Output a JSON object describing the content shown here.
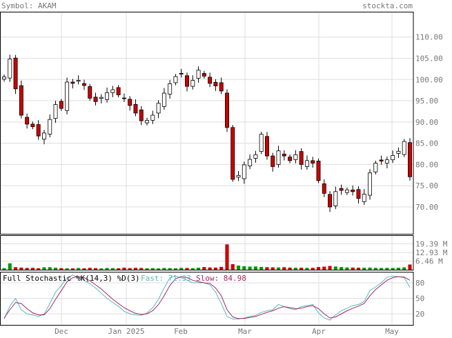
{
  "header": {
    "symbol_label": "Symbol: AKAM",
    "site": "stockta.com"
  },
  "colors": {
    "text": "#777777",
    "grid": "#dddddd",
    "frame": "#000000",
    "up_candle": "#ffffff",
    "down_candle": "#cc0000",
    "volume_up": "#009900",
    "volume_down": "#cc0000",
    "fast_line": "#55bbbb",
    "slow_line": "#aa2266"
  },
  "chart_data": [
    {
      "type": "candlestick",
      "title": "Symbol: AKAM",
      "x_ticks": [
        "Dec",
        "Jan 2025",
        "Feb",
        "Mar",
        "Apr",
        "May"
      ],
      "y_ticks": [
        "110.00",
        "105.00",
        "100.00",
        "95.00",
        "90.00",
        "85.00",
        "80.00",
        "75.00",
        "70.00"
      ],
      "ylim": [
        63.5,
        115.8
      ],
      "grid": true,
      "close_series": [
        100.6,
        104.8,
        97.8,
        91.6,
        89.5,
        88.9,
        86.7,
        87.4,
        90.6,
        94.1,
        93.2,
        99.4,
        99.1,
        99.8,
        98.6,
        95.6,
        94.8,
        95.8,
        96.9,
        97.6,
        96.4,
        95.6,
        93.9,
        92.1,
        90.3,
        90.4,
        91.6,
        94.4,
        96.8,
        99.0,
        100.7,
        101.4,
        98.4,
        99.8,
        102.2,
        100.8,
        99.1,
        98.5,
        97.3,
        88.7,
        76.5,
        77.4,
        79.9,
        81.2,
        82.3,
        87.1,
        82.0,
        79.5,
        83.2,
        82.0,
        80.9,
        82.3,
        80.0,
        80.9,
        80.3,
        76.2,
        73.2,
        70.0,
        73.6,
        73.9,
        74.0,
        73.6,
        72.0,
        73.0,
        78.0,
        80.3,
        80.8,
        81.1,
        82.1,
        83.1,
        85.4,
        77.1
      ],
      "volume": {
        "unit": "M",
        "ticks": [
          "19.39 M",
          "12.93 M",
          "6.46 M"
        ],
        "values": [
          1.2,
          4.8,
          1.9,
          1.6,
          1.3,
          1.4,
          1.1,
          1.8,
          1.9,
          1.5,
          1.2,
          1.1,
          1.0,
          1.3,
          1.1,
          1.4,
          1.2,
          1.0,
          1.3,
          1.2,
          1.1,
          1.5,
          1.2,
          1.4,
          1.3,
          1.1,
          1.2,
          1.0,
          1.3,
          1.2,
          1.1,
          1.4,
          1.3,
          1.2,
          1.5,
          2.0,
          1.7,
          1.6,
          2.1,
          19.0,
          4.2,
          3.1,
          2.6,
          2.3,
          2.4,
          2.1,
          1.9,
          1.8,
          1.7,
          1.9,
          1.6,
          1.5,
          1.5,
          1.4,
          1.4,
          2.0,
          2.3,
          2.8,
          2.4,
          2.0,
          1.7,
          1.6,
          1.5,
          1.5,
          1.6,
          1.4,
          1.3,
          1.4,
          1.3,
          1.5,
          1.8,
          3.9
        ]
      }
    },
    {
      "type": "line",
      "title": "Full Stochastic %K(14,3) %D(3)",
      "y_ticks": [
        "80",
        "50",
        "20"
      ],
      "ylim": [
        0,
        100
      ],
      "series": [
        {
          "name": "Fast",
          "last_label": "71.33",
          "values": [
            10,
            35,
            50,
            28,
            20,
            18,
            15,
            20,
            40,
            62,
            75,
            90,
            95,
            90,
            85,
            78,
            70,
            60,
            50,
            42,
            35,
            25,
            20,
            18,
            17,
            22,
            32,
            48,
            70,
            90,
            93,
            90,
            85,
            80,
            80,
            80,
            76,
            62,
            40,
            15,
            10,
            10,
            12,
            15,
            17,
            23,
            26,
            28,
            38,
            34,
            30,
            28,
            34,
            36,
            38,
            22,
            12,
            8,
            18,
            26,
            31,
            36,
            38,
            44,
            65,
            72,
            80,
            91,
            93,
            92,
            90,
            71
          ]
        },
        {
          "name": "Slow",
          "last_label": "84.98",
          "values": [
            12,
            28,
            42,
            40,
            30,
            22,
            18,
            18,
            30,
            48,
            65,
            82,
            90,
            92,
            90,
            84,
            76,
            68,
            58,
            48,
            40,
            32,
            26,
            21,
            19,
            20,
            26,
            38,
            55,
            75,
            88,
            92,
            90,
            85,
            82,
            80,
            79,
            70,
            55,
            28,
            14,
            11,
            11,
            13,
            15,
            19,
            23,
            26,
            31,
            34,
            32,
            30,
            31,
            34,
            36,
            30,
            20,
            12,
            14,
            20,
            26,
            31,
            35,
            40,
            55,
            67,
            76,
            85,
            90,
            92,
            91,
            85
          ]
        }
      ]
    }
  ]
}
